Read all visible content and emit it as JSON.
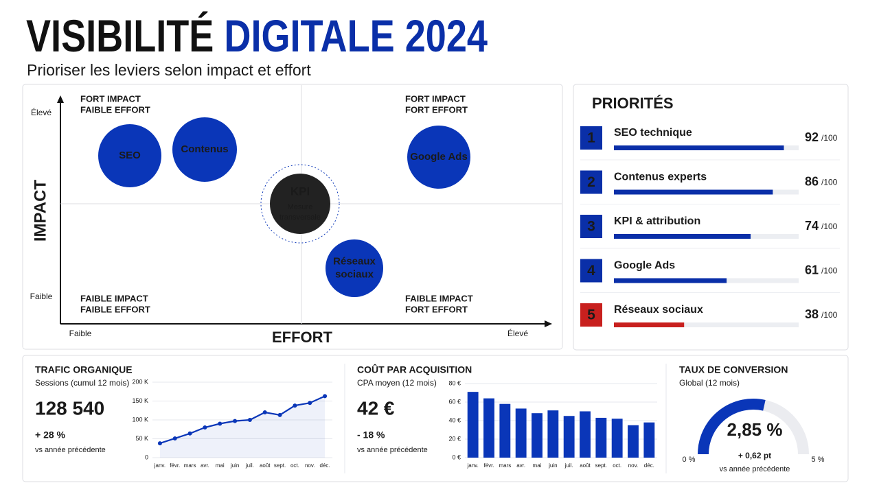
{
  "header": {
    "title_part1": "VISIBILITÉ",
    "title_part2": "DIGITALE 2024",
    "subtitle": "Prioriser les leviers selon impact et effort"
  },
  "matrix": {
    "y_axis_label": "IMPACT",
    "x_axis_label": "EFFORT",
    "y_high": "Élevé",
    "y_low": "Faible",
    "x_low": "Faible",
    "x_high": "Élevé",
    "quadrants": [
      {
        "lines": [
          "FORT IMPACT",
          "FAIBLE EFFORT"
        ]
      },
      {
        "lines": [
          "FORT IMPACT",
          "FORT EFFORT"
        ]
      },
      {
        "lines": [
          "FAIBLE IMPACT",
          "FAIBLE EFFORT"
        ]
      },
      {
        "lines": [
          "FAIBLE IMPACT",
          "FORT EFFORT"
        ]
      }
    ],
    "bubbles": [
      {
        "lines": [
          "SEO"
        ]
      },
      {
        "lines": [
          "Contenus"
        ]
      },
      {
        "lines": [
          "Google Ads"
        ]
      },
      {
        "lines": [
          "Réseaux",
          "sociaux"
        ]
      }
    ],
    "center": {
      "label": "KPI",
      "lines": [
        "Mesure",
        "transversale"
      ]
    }
  },
  "priorities": {
    "title": "PRIORITÉS",
    "xlim": [
      0,
      100
    ],
    "items": [
      {
        "rank": "1",
        "label": "SEO technique",
        "score": 92,
        "max_label": "/100"
      },
      {
        "rank": "2",
        "label": "Contenus experts",
        "score": 86,
        "max_label": "/100"
      },
      {
        "rank": "3",
        "label": "KPI & attribution",
        "score": 74,
        "max_label": "/100"
      },
      {
        "rank": "4",
        "label": "Google Ads",
        "score": 61,
        "max_label": "/100"
      },
      {
        "rank": "5",
        "label": "Réseaux sociaux",
        "score": 38,
        "max_label": "/100"
      }
    ]
  },
  "chart_data": [
    {
      "type": "line",
      "title": "TRAFIC ORGANIQUE",
      "subtitle": "Sessions (cumul 12 mois)",
      "kpi": "128 540",
      "change": "+ 28 %",
      "note": "vs année précédente",
      "color": "#0a36b8",
      "categories": [
        "janv.",
        "févr.",
        "mars",
        "avr.",
        "mai",
        "juin",
        "juil.",
        "août",
        "sept.",
        "oct.",
        "nov.",
        "déc."
      ],
      "values": [
        38000,
        51000,
        64000,
        80000,
        90000,
        97000,
        100000,
        120000,
        113000,
        138000,
        145000,
        163000
      ],
      "ylim": [
        0,
        200000
      ],
      "yticks": [
        0,
        {
          "value": 50000,
          "label": "50 K"
        },
        {
          "value": 100000,
          "label": "100 K"
        },
        {
          "value": 150000,
          "label": "150 K"
        },
        {
          "value": 200000,
          "label": "200 K"
        }
      ],
      "grid": true
    },
    {
      "type": "bar",
      "title": "COÛT PAR ACQUISITION",
      "subtitle": "CPA moyen (12 mois)",
      "kpi": "42 €",
      "change": "- 18 %",
      "note": "vs année précédente",
      "color": "#0a36b8",
      "categories": [
        "janv.",
        "févr.",
        "mars",
        "avr.",
        "mai",
        "juin",
        "juil.",
        "août",
        "sept.",
        "oct.",
        "nov.",
        "déc."
      ],
      "values": [
        71,
        64,
        58,
        53,
        48,
        51,
        45,
        50,
        43,
        42,
        35,
        38
      ],
      "ylim": [
        0,
        80
      ],
      "yticks": [
        {
          "value": 0,
          "label": "0 €"
        },
        {
          "value": 20,
          "label": "20 €"
        },
        {
          "value": 40,
          "label": "40 €"
        },
        {
          "value": 60,
          "label": "60 €"
        },
        {
          "value": 80,
          "label": "80 €"
        }
      ],
      "grid": true
    },
    {
      "type": "gauge",
      "title": "TAUX DE CONVERSION",
      "subtitle": "Global (12 mois)",
      "values": [
        2.85
      ],
      "value_labels": [
        "2,85 %"
      ],
      "change": "+ 0,62 pt",
      "note": "vs année précédente",
      "color": "#0a36b8",
      "ylim": [
        0,
        5
      ],
      "yticks": [
        {
          "value": 0,
          "label": "0 %"
        },
        {
          "value": 5,
          "label": "5 %"
        }
      ]
    }
  ]
}
